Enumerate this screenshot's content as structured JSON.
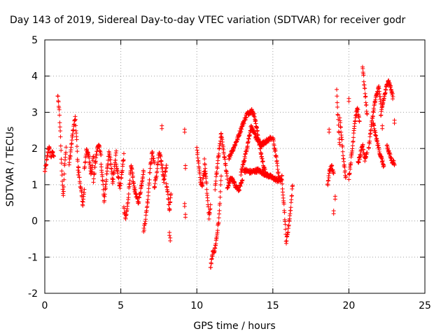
{
  "chart_data": {
    "type": "scatter",
    "title": "Day 143 of 2019, Sidereal Day-to-day VTEC variation (SDTVAR) for receiver godr",
    "xlabel": "GPS time / hours",
    "ylabel": "SDTVAR / TECUs",
    "xlim": [
      0,
      25
    ],
    "ylim": [
      -2,
      5
    ],
    "xticks": [
      0,
      5,
      10,
      15,
      20,
      25
    ],
    "yticks": [
      -2,
      -1,
      0,
      1,
      2,
      3,
      4,
      5
    ],
    "grid": true,
    "marker": "+",
    "color": "#ff0000",
    "segments": [
      {
        "name": "seg-00",
        "t0": 0.0,
        "t1": 0.35,
        "y": [
          1.35,
          1.55,
          1.8,
          2.05,
          1.9
        ]
      },
      {
        "name": "seg-01",
        "t0": 0.4,
        "t1": 0.6,
        "y": [
          1.75,
          1.9,
          1.8
        ]
      },
      {
        "name": "seg-02",
        "t0": 0.85,
        "t1": 1.4,
        "y": [
          3.45,
          3.1,
          2.3,
          1.3,
          0.65,
          1.6,
          2.0
        ]
      },
      {
        "name": "seg-03",
        "t0": 1.6,
        "t1": 2.2,
        "y": [
          1.55,
          1.9,
          2.3,
          2.6,
          2.85,
          2.2,
          1.3
        ]
      },
      {
        "name": "seg-04",
        "t0": 2.2,
        "t1": 2.6,
        "y": [
          1.5,
          1.1,
          0.8,
          0.45,
          0.85
        ]
      },
      {
        "name": "seg-05",
        "t0": 2.6,
        "t1": 3.2,
        "y": [
          1.4,
          2.0,
          1.75,
          1.3,
          1.8
        ]
      },
      {
        "name": "seg-06",
        "t0": 3.2,
        "t1": 3.7,
        "y": [
          1.1,
          1.6,
          2.0,
          2.1,
          1.8
        ]
      },
      {
        "name": "seg-07",
        "t0": 3.7,
        "t1": 4.1,
        "y": [
          1.55,
          1.15,
          0.55,
          0.95,
          1.4
        ]
      },
      {
        "name": "seg-08",
        "t0": 4.1,
        "t1": 4.7,
        "y": [
          1.35,
          1.9,
          1.6,
          1.05,
          1.45,
          1.9
        ]
      },
      {
        "name": "seg-09",
        "t0": 4.7,
        "t1": 5.2,
        "y": [
          1.6,
          1.25,
          0.9,
          1.35,
          1.8
        ]
      },
      {
        "name": "seg-10",
        "t0": 5.2,
        "t1": 5.8,
        "y": [
          0.35,
          0.05,
          0.4,
          1.0,
          1.5,
          1.2
        ]
      },
      {
        "name": "seg-11",
        "t0": 5.8,
        "t1": 6.5,
        "y": [
          1.1,
          0.75,
          0.5,
          0.9,
          1.4
        ]
      },
      {
        "name": "seg-12",
        "t0": 6.5,
        "t1": 7.2,
        "y": [
          -0.3,
          0.1,
          0.6,
          1.4,
          1.9,
          1.6
        ]
      },
      {
        "name": "seg-13",
        "t0": 7.2,
        "t1": 8.0,
        "y": [
          0.9,
          1.3,
          1.9,
          1.6,
          1.1,
          1.55
        ]
      },
      {
        "name": "seg-14",
        "t0": 8.0,
        "t1": 8.3,
        "y": [
          1.0,
          0.7,
          0.3,
          0.75
        ]
      },
      {
        "name": "seg-15",
        "t0": 10.0,
        "t1": 10.6,
        "y": [
          2.0,
          1.6,
          1.1,
          1.0,
          1.35,
          1.25
        ]
      },
      {
        "name": "seg-16",
        "t0": 10.5,
        "t1": 10.9,
        "y": [
          1.7,
          1.2,
          0.6,
          0.1,
          0.4
        ]
      },
      {
        "name": "seg-17",
        "t0": 10.9,
        "t1": 11.6,
        "y": [
          -1.3,
          -0.9,
          -0.8,
          -0.4,
          0.1,
          1.2
        ]
      },
      {
        "name": "seg-18",
        "t0": 11.2,
        "t1": 12.0,
        "y": [
          0.9,
          1.7,
          2.4,
          1.8,
          1.2
        ]
      },
      {
        "name": "seg-19",
        "t0": 12.0,
        "t1": 13.0,
        "y": [
          0.9,
          1.2,
          1.0,
          0.85,
          1.1
        ]
      },
      {
        "name": "seg-20",
        "t0": 12.1,
        "t1": 13.6,
        "y": [
          1.75,
          2.0,
          2.3,
          2.65,
          2.95,
          3.05
        ]
      },
      {
        "name": "seg-21",
        "t0": 13.6,
        "t1": 14.6,
        "y": [
          3.05,
          2.9,
          2.4,
          1.9,
          1.5,
          1.2
        ]
      },
      {
        "name": "seg-22",
        "t0": 12.9,
        "t1": 14.9,
        "y": [
          1.3,
          1.9,
          2.6,
          2.3,
          2.1,
          2.2,
          2.3
        ]
      },
      {
        "name": "seg-23",
        "t0": 13.1,
        "t1": 15.4,
        "y": [
          1.4,
          1.35,
          1.4,
          1.3,
          1.2,
          1.1
        ]
      },
      {
        "name": "seg-24",
        "t0": 15.0,
        "t1": 15.6,
        "y": [
          2.3,
          2.0,
          1.7,
          1.3,
          1.1,
          1.2
        ]
      },
      {
        "name": "seg-25",
        "t0": 15.6,
        "t1": 16.3,
        "y": [
          1.1,
          0.4,
          -0.6,
          -0.2,
          0.3,
          1.0
        ]
      },
      {
        "name": "seg-26",
        "t0": 18.6,
        "t1": 19.0,
        "y": [
          1.0,
          1.4,
          1.5,
          1.3
        ]
      },
      {
        "name": "seg-27",
        "t0": 19.2,
        "t1": 19.4,
        "y": [
          3.6,
          3.0,
          2.5,
          2.1
        ]
      },
      {
        "name": "seg-28",
        "t0": 19.4,
        "t1": 19.8,
        "y": [
          2.8,
          2.3,
          1.6,
          1.2
        ]
      },
      {
        "name": "seg-29",
        "t0": 20.0,
        "t1": 20.7,
        "y": [
          1.2,
          1.6,
          2.0,
          2.6,
          2.95,
          3.1,
          2.7
        ]
      },
      {
        "name": "seg-30",
        "t0": 20.6,
        "t1": 21.2,
        "y": [
          1.6,
          1.8,
          2.1,
          1.7,
          1.9
        ]
      },
      {
        "name": "seg-31",
        "t0": 20.9,
        "t1": 21.2,
        "y": [
          4.3,
          3.8,
          3.4,
          2.9
        ]
      },
      {
        "name": "seg-32",
        "t0": 21.3,
        "t1": 22.1,
        "y": [
          2.0,
          2.5,
          2.9,
          3.25,
          3.5,
          3.7,
          3.2
        ]
      },
      {
        "name": "seg-33",
        "t0": 21.6,
        "t1": 22.3,
        "y": [
          2.7,
          2.4,
          2.15,
          1.9,
          1.7,
          1.5
        ]
      },
      {
        "name": "seg-34",
        "t0": 22.1,
        "t1": 22.9,
        "y": [
          2.9,
          3.3,
          3.6,
          3.9,
          3.7,
          3.4
        ]
      },
      {
        "name": "seg-35",
        "t0": 22.5,
        "t1": 23.0,
        "y": [
          2.1,
          1.85,
          1.65,
          1.6
        ]
      }
    ],
    "isolated_points": [
      {
        "x": 7.7,
        "y": 2.55
      },
      {
        "x": 8.2,
        "y": -0.4
      },
      {
        "x": 8.25,
        "y": -0.55
      },
      {
        "x": 9.2,
        "y": 2.45
      },
      {
        "x": 9.25,
        "y": 1.45
      },
      {
        "x": 9.2,
        "y": 0.4
      },
      {
        "x": 9.25,
        "y": 0.1
      },
      {
        "x": 18.7,
        "y": 2.45
      },
      {
        "x": 19.0,
        "y": 0.2
      },
      {
        "x": 19.1,
        "y": 0.6
      },
      {
        "x": 20.0,
        "y": 3.3
      },
      {
        "x": 22.2,
        "y": 2.55
      },
      {
        "x": 23.0,
        "y": 2.7
      }
    ]
  }
}
